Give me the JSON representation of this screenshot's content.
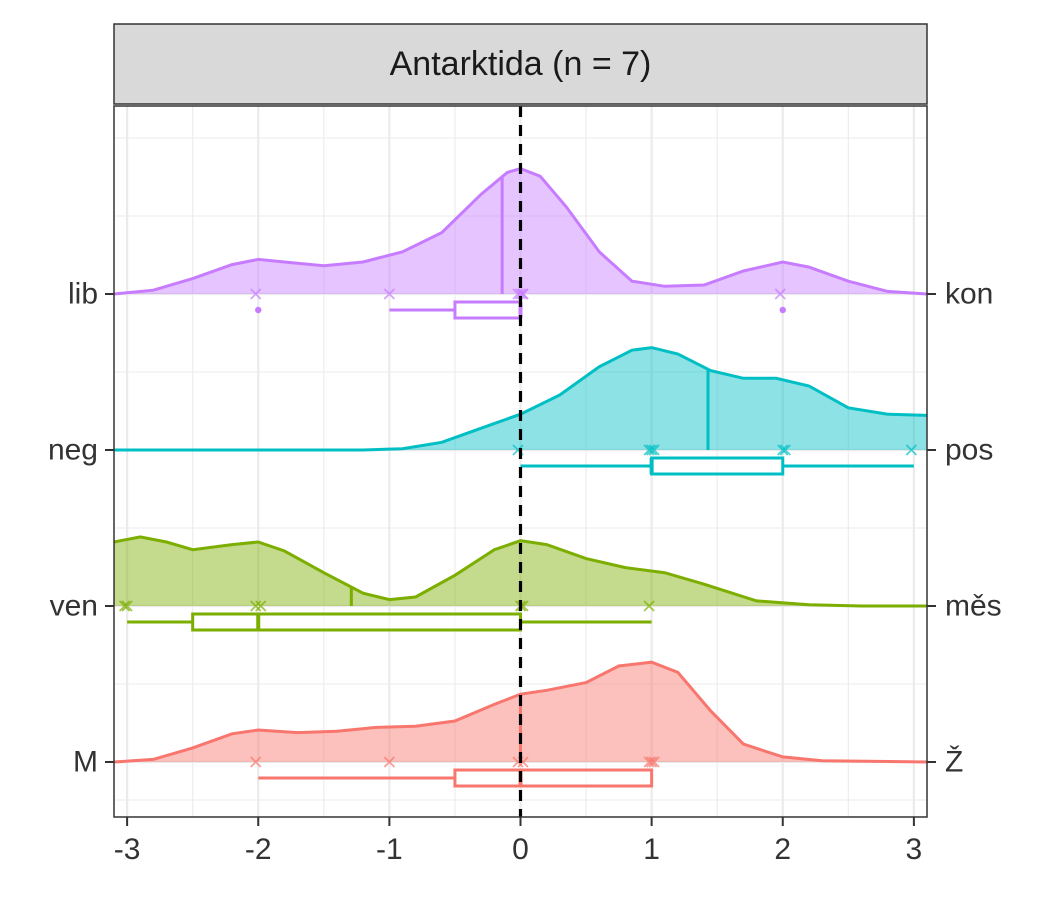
{
  "chart_data": {
    "type": "ridgeline",
    "title": "Antarktida (n = 7)",
    "xlim": [
      -3.1,
      3.1
    ],
    "x_ticks": [
      -3,
      -2,
      -1,
      0,
      1,
      2,
      3
    ],
    "x_tick_labels": [
      "-3",
      "-2",
      "-1",
      "0",
      "1",
      "2",
      "3"
    ],
    "reference_line_x": 0,
    "grid": true,
    "rows": [
      {
        "left_label": "lib",
        "right_label": "kon",
        "color": "#C77CFF",
        "mean": -0.14,
        "points": [
          -2,
          -1,
          0,
          0,
          0,
          0,
          2
        ],
        "box": {
          "whisker_low": -1,
          "q1": -0.5,
          "median": 0,
          "q3": 0,
          "whisker_high": 0,
          "outliers": [
            -2,
            2
          ]
        },
        "density": [
          [
            -3.1,
            0.0
          ],
          [
            -2.8,
            0.03
          ],
          [
            -2.5,
            0.12
          ],
          [
            -2.2,
            0.23
          ],
          [
            -2.0,
            0.27
          ],
          [
            -1.8,
            0.25
          ],
          [
            -1.5,
            0.22
          ],
          [
            -1.2,
            0.25
          ],
          [
            -0.9,
            0.33
          ],
          [
            -0.6,
            0.48
          ],
          [
            -0.3,
            0.78
          ],
          [
            -0.1,
            0.95
          ],
          [
            0.0,
            0.98
          ],
          [
            0.15,
            0.92
          ],
          [
            0.35,
            0.68
          ],
          [
            0.6,
            0.33
          ],
          [
            0.85,
            0.1
          ],
          [
            1.1,
            0.06
          ],
          [
            1.4,
            0.07
          ],
          [
            1.7,
            0.18
          ],
          [
            2.0,
            0.25
          ],
          [
            2.2,
            0.21
          ],
          [
            2.5,
            0.1
          ],
          [
            2.8,
            0.02
          ],
          [
            3.1,
            0.0
          ]
        ]
      },
      {
        "left_label": "neg",
        "right_label": "pos",
        "color": "#00BFC4",
        "mean": 1.43,
        "points": [
          0,
          1,
          1,
          1,
          2,
          2,
          3
        ],
        "box": {
          "whisker_low": 0,
          "q1": 1,
          "median": 1,
          "q3": 2,
          "whisker_high": 3,
          "outliers": []
        },
        "density": [
          [
            -3.1,
            0.0
          ],
          [
            -2.0,
            0.0
          ],
          [
            -1.2,
            0.0
          ],
          [
            -0.9,
            0.01
          ],
          [
            -0.6,
            0.06
          ],
          [
            -0.3,
            0.17
          ],
          [
            0.0,
            0.28
          ],
          [
            0.3,
            0.43
          ],
          [
            0.6,
            0.65
          ],
          [
            0.85,
            0.78
          ],
          [
            1.0,
            0.8
          ],
          [
            1.2,
            0.75
          ],
          [
            1.45,
            0.62
          ],
          [
            1.7,
            0.56
          ],
          [
            1.95,
            0.56
          ],
          [
            2.2,
            0.5
          ],
          [
            2.5,
            0.33
          ],
          [
            2.8,
            0.28
          ],
          [
            3.1,
            0.27
          ]
        ]
      },
      {
        "left_label": "ven",
        "right_label": "měs",
        "color": "#7CAE00",
        "mean": -1.29,
        "points": [
          -3,
          -3,
          -2,
          -2,
          0,
          0,
          1
        ],
        "box": {
          "whisker_low": -3,
          "q1": -2.5,
          "median": -2,
          "q3": 0,
          "whisker_high": 1,
          "outliers": []
        },
        "density": [
          [
            -3.1,
            0.5
          ],
          [
            -2.9,
            0.54
          ],
          [
            -2.7,
            0.5
          ],
          [
            -2.5,
            0.44
          ],
          [
            -2.2,
            0.48
          ],
          [
            -2.0,
            0.5
          ],
          [
            -1.8,
            0.43
          ],
          [
            -1.5,
            0.26
          ],
          [
            -1.2,
            0.1
          ],
          [
            -1.0,
            0.05
          ],
          [
            -0.8,
            0.07
          ],
          [
            -0.5,
            0.24
          ],
          [
            -0.2,
            0.44
          ],
          [
            0.0,
            0.51
          ],
          [
            0.2,
            0.48
          ],
          [
            0.5,
            0.37
          ],
          [
            0.8,
            0.3
          ],
          [
            1.1,
            0.26
          ],
          [
            1.4,
            0.17
          ],
          [
            1.8,
            0.04
          ],
          [
            2.2,
            0.01
          ],
          [
            2.6,
            0.0
          ],
          [
            3.1,
            0.0
          ]
        ]
      },
      {
        "left_label": "M",
        "right_label": "Ž",
        "color": "#F8766D",
        "mean": 0,
        "points": [
          -2,
          -1,
          0,
          0,
          1,
          1,
          1
        ],
        "box": {
          "whisker_low": -2,
          "q1": -0.5,
          "median": 0,
          "q3": 1,
          "whisker_high": 1,
          "outliers": []
        },
        "density": [
          [
            -3.1,
            0.0
          ],
          [
            -2.8,
            0.02
          ],
          [
            -2.5,
            0.11
          ],
          [
            -2.2,
            0.22
          ],
          [
            -2.0,
            0.25
          ],
          [
            -1.7,
            0.23
          ],
          [
            -1.4,
            0.24
          ],
          [
            -1.1,
            0.27
          ],
          [
            -0.8,
            0.28
          ],
          [
            -0.5,
            0.32
          ],
          [
            -0.2,
            0.45
          ],
          [
            0.0,
            0.53
          ],
          [
            0.2,
            0.56
          ],
          [
            0.5,
            0.62
          ],
          [
            0.75,
            0.75
          ],
          [
            1.0,
            0.78
          ],
          [
            1.2,
            0.7
          ],
          [
            1.45,
            0.4
          ],
          [
            1.7,
            0.14
          ],
          [
            2.0,
            0.04
          ],
          [
            2.3,
            0.01
          ],
          [
            3.1,
            0.0
          ]
        ]
      }
    ]
  }
}
